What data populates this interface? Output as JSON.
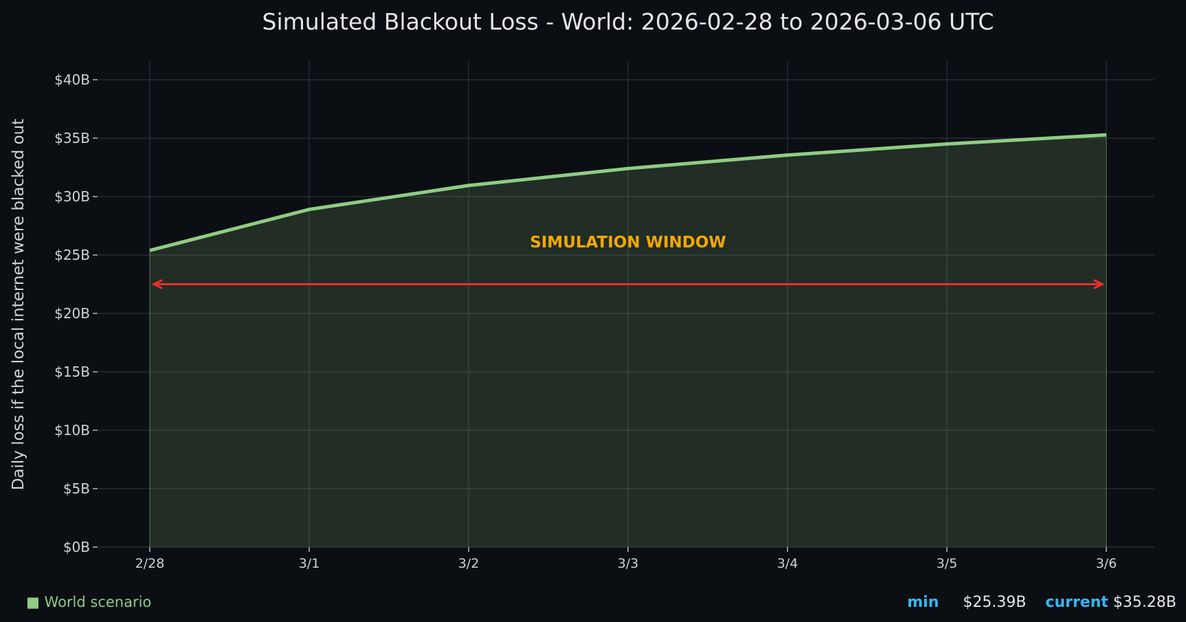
{
  "chart_data": {
    "type": "area",
    "title": "Simulated Blackout Loss - World: 2026-02-28 to 2026-03-06 UTC",
    "xlabel": "",
    "ylabel": "Daily loss if the local internet were blacked out",
    "categories": [
      "2/28",
      "3/1",
      "3/2",
      "3/3",
      "3/4",
      "3/5",
      "3/6"
    ],
    "series": [
      {
        "name": "World scenario",
        "values": [
          25.39,
          28.9,
          30.95,
          32.4,
          33.55,
          34.5,
          35.28
        ],
        "color": "#8fcc84"
      }
    ],
    "ylim": [
      0,
      41.5
    ],
    "yticks": [
      0,
      5,
      10,
      15,
      20,
      25,
      30,
      35,
      40
    ],
    "ytick_labels": [
      "$0B",
      "$5B",
      "$10B",
      "$15B",
      "$20B",
      "$25B",
      "$30B",
      "$35B",
      "$40B"
    ],
    "grid": true,
    "annotation": {
      "text": "SIMULATION WINDOW",
      "color": "#f5a800",
      "arrow_color": "#e8302c",
      "arrow_y": 22.5,
      "from": "2/28",
      "to": "3/6"
    }
  },
  "legend": {
    "marker": "■",
    "label": "World scenario"
  },
  "stats": {
    "min_label": "min",
    "min_value": "$25.39B",
    "current_label": "current",
    "current_value": "$35.28B"
  }
}
